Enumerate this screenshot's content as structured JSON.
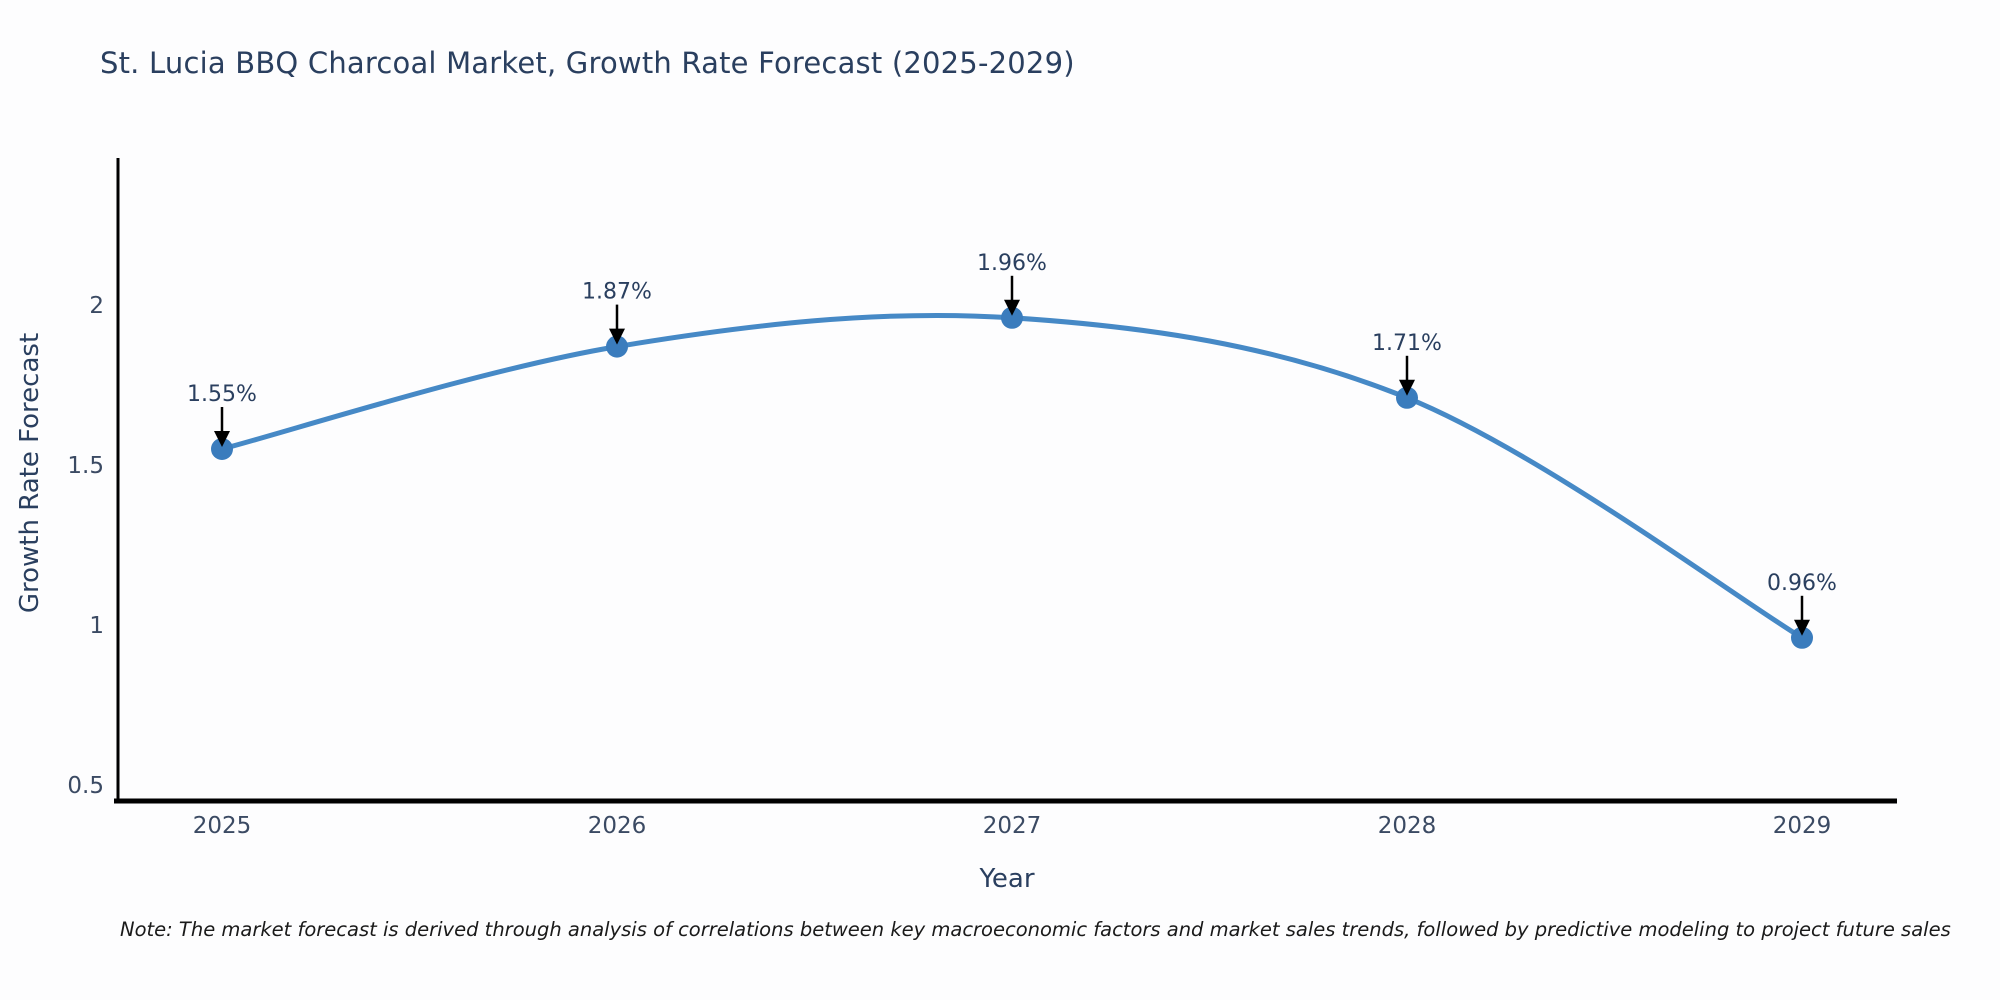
{
  "title": "St. Lucia BBQ Charcoal Market, Growth Rate Forecast (2025-2029)",
  "note": "Note: The market forecast is derived through analysis of correlations between key macroeconomic factors and market sales trends, followed by predictive modeling to project future sales",
  "chart_data": {
    "type": "line",
    "title": "St. Lucia BBQ Charcoal Market, Growth Rate Forecast (2025-2029)",
    "xlabel": "Year",
    "ylabel": "Growth Rate Forecast",
    "x": [
      "2025",
      "2026",
      "2027",
      "2028",
      "2029"
    ],
    "series": [
      {
        "name": "Growth Rate Forecast",
        "values": [
          1.55,
          1.87,
          1.96,
          1.71,
          0.96
        ]
      }
    ],
    "point_labels": [
      "1.55%",
      "1.87%",
      "1.96%",
      "1.71%",
      "0.96%"
    ],
    "yticks": [
      "0.5",
      "1",
      "1.5",
      "2"
    ],
    "ytick_values": [
      0.5,
      1.0,
      1.5,
      2.0
    ],
    "ylim": [
      0.45,
      2.5
    ],
    "grid": false,
    "legend": "none",
    "curve": "spline",
    "colors": {
      "line": "#4689c6",
      "marker": "#3a7cbd",
      "axis": "#000000",
      "text": "#2a3f5f",
      "annotation_arrow": "#000000",
      "background": "#fdfdfe"
    }
  }
}
